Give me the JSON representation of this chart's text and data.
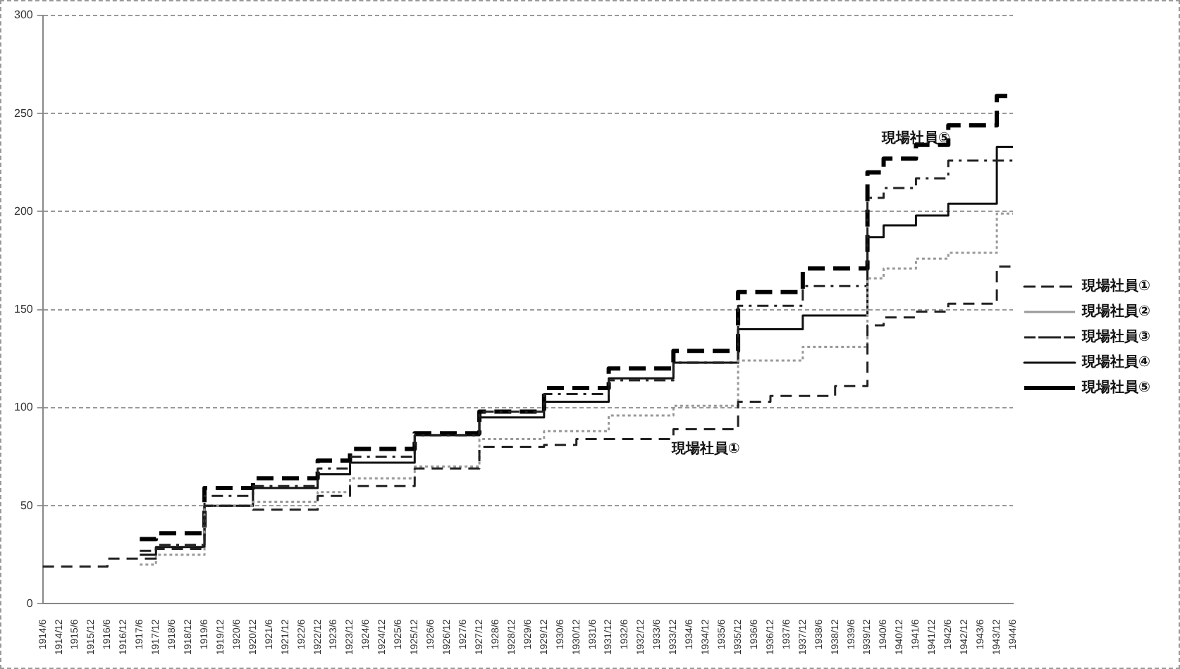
{
  "chart_data": {
    "type": "step",
    "categories": [
      "1914/6",
      "1914/12",
      "1915/6",
      "1915/12",
      "1916/6",
      "1916/12",
      "1917/6",
      "1917/12",
      "1918/6",
      "1918/12",
      "1919/6",
      "1919/12",
      "1920/6",
      "1920/12",
      "1921/6",
      "1921/12",
      "1922/6",
      "1922/12",
      "1923/6",
      "1923/12",
      "1924/6",
      "1924/12",
      "1925/6",
      "1925/12",
      "1926/6",
      "1926/12",
      "1927/6",
      "1927/12",
      "1928/6",
      "1928/12",
      "1929/6",
      "1929/12",
      "1930/6",
      "1930/12",
      "1931/6",
      "1931/12",
      "1932/6",
      "1932/12",
      "1933/6",
      "1933/12",
      "1934/6",
      "1934/12",
      "1935/6",
      "1935/12",
      "1936/6",
      "1936/12",
      "1937/6",
      "1937/12",
      "1938/6",
      "1938/12",
      "1939/6",
      "1939/12",
      "1940/6",
      "1940/12",
      "1941/6",
      "1941/12",
      "1942/6",
      "1942/12",
      "1943/6",
      "1943/12",
      "1944/6"
    ],
    "series": [
      {
        "name": "現場社員①",
        "color": "#222222",
        "line_style": "dashed",
        "values": [
          19,
          19,
          19,
          19,
          19,
          23,
          23,
          23,
          28,
          28,
          28,
          50,
          50,
          50,
          48,
          48,
          48,
          48,
          55,
          55,
          60,
          60,
          60,
          60,
          69,
          69,
          69,
          69,
          80,
          80,
          80,
          80,
          81,
          81,
          84,
          84,
          84,
          84,
          84,
          84,
          89,
          89,
          89,
          89,
          103,
          103,
          106,
          106,
          106,
          106,
          111,
          111,
          142,
          146,
          146,
          149,
          149,
          153,
          153,
          153,
          172
        ]
      },
      {
        "name": "現場社員②",
        "color": "#999999",
        "line_style": "dotted",
        "values": [
          null,
          null,
          null,
          null,
          null,
          null,
          20,
          20,
          25,
          25,
          25,
          50,
          50,
          50,
          52,
          52,
          52,
          52,
          57,
          57,
          64,
          64,
          64,
          64,
          70,
          70,
          70,
          70,
          84,
          84,
          84,
          84,
          88,
          88,
          88,
          88,
          96,
          96,
          96,
          96,
          101,
          101,
          101,
          101,
          124,
          124,
          124,
          124,
          131,
          131,
          131,
          131,
          166,
          171,
          171,
          176,
          176,
          179,
          179,
          179,
          199
        ]
      },
      {
        "name": "現場社員③",
        "color": "#222222",
        "line_style": "dashdot",
        "values": [
          null,
          null,
          null,
          null,
          null,
          null,
          27,
          27,
          30,
          30,
          30,
          55,
          55,
          55,
          60,
          60,
          60,
          60,
          69,
          69,
          75,
          75,
          75,
          75,
          86,
          86,
          86,
          86,
          98,
          98,
          98,
          98,
          107,
          107,
          107,
          107,
          114,
          114,
          114,
          114,
          123,
          123,
          123,
          123,
          152,
          152,
          152,
          152,
          162,
          162,
          162,
          162,
          207,
          212,
          212,
          217,
          217,
          226,
          226,
          226,
          226
        ]
      },
      {
        "name": "現場社員④",
        "color": "#111111",
        "line_style": "solid",
        "values": [
          null,
          null,
          null,
          null,
          null,
          null,
          25,
          25,
          29,
          29,
          29,
          50,
          50,
          50,
          59,
          59,
          59,
          59,
          66,
          66,
          72,
          72,
          72,
          72,
          86,
          86,
          86,
          86,
          95,
          95,
          95,
          95,
          103,
          103,
          103,
          103,
          115,
          115,
          115,
          115,
          123,
          123,
          123,
          123,
          140,
          140,
          140,
          140,
          147,
          147,
          147,
          147,
          187,
          193,
          193,
          198,
          198,
          204,
          204,
          204,
          233
        ]
      },
      {
        "name": "現場社員⑤",
        "color": "#000000",
        "line_style": "longdash",
        "values": [
          null,
          null,
          null,
          null,
          null,
          null,
          33,
          33,
          36,
          36,
          36,
          59,
          59,
          59,
          64,
          64,
          64,
          64,
          73,
          73,
          79,
          79,
          79,
          79,
          87,
          87,
          87,
          87,
          98,
          98,
          98,
          98,
          110,
          110,
          110,
          110,
          120,
          120,
          120,
          120,
          129,
          129,
          129,
          129,
          159,
          159,
          159,
          159,
          171,
          171,
          171,
          171,
          220,
          227,
          227,
          234,
          234,
          244,
          244,
          244,
          259
        ]
      }
    ],
    "ylim": [
      0,
      300
    ],
    "yticks": [
      0,
      50,
      100,
      150,
      200,
      250,
      300
    ],
    "grid": "y",
    "legend": "right",
    "annotations": [
      {
        "text": "現場社員⑤",
        "x": "1941/6",
        "y": 227
      },
      {
        "text": "現場社員①",
        "x": "1934/12",
        "y": 89
      }
    ]
  }
}
